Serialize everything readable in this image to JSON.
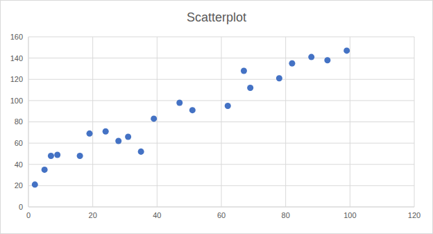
{
  "chart_data": {
    "type": "scatter",
    "title": "Scatterplot",
    "x": [
      2,
      5,
      7,
      9,
      16,
      19,
      24,
      28,
      31,
      35,
      39,
      47,
      51,
      62,
      67,
      69,
      78,
      82,
      88,
      93,
      99
    ],
    "values": [
      21,
      35,
      48,
      49,
      48,
      69,
      71,
      62,
      66,
      52,
      83,
      98,
      91,
      95,
      128,
      112,
      121,
      135,
      141,
      138,
      147
    ],
    "color": "#4472c4",
    "marker": "circle",
    "xlim": [
      0,
      120
    ],
    "xticks": [
      0,
      20,
      40,
      60,
      80,
      100,
      120
    ],
    "ylim": [
      0,
      160
    ],
    "yticks": [
      0,
      20,
      40,
      60,
      80,
      100,
      120,
      140,
      160
    ],
    "grid": true
  }
}
